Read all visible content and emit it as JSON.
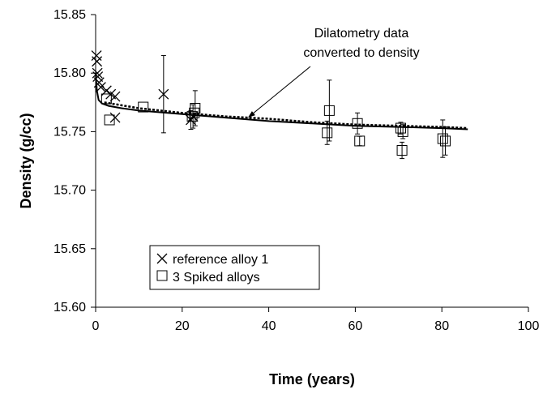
{
  "chart_data": {
    "type": "scatter",
    "title": "",
    "xlabel": "Time (years)",
    "ylabel": "Density (g/cc)",
    "xlim": [
      0,
      100
    ],
    "ylim": [
      15.6,
      15.85
    ],
    "x_ticks": [
      0,
      20,
      40,
      60,
      80,
      100
    ],
    "y_ticks": [
      15.6,
      15.65,
      15.7,
      15.75,
      15.8,
      15.85
    ],
    "x_tick_labels": [
      "0",
      "20",
      "40",
      "60",
      "80",
      "100"
    ],
    "y_tick_labels": [
      "15.60",
      "15.65",
      "15.70",
      "15.75",
      "15.80",
      "15.85"
    ],
    "grid": false,
    "legend_position": "bottom-left",
    "annotation": {
      "lines": [
        "Dilatometry data",
        "converted to density"
      ],
      "points_to": [
        35,
        15.762
      ]
    },
    "series": [
      {
        "name": "reference alloy 1",
        "marker": "x",
        "points": [
          {
            "x": 0.2,
            "y": 15.815
          },
          {
            "x": 0.3,
            "y": 15.81
          },
          {
            "x": 0.4,
            "y": 15.8
          },
          {
            "x": 0.5,
            "y": 15.797
          },
          {
            "x": 0.8,
            "y": 15.792
          },
          {
            "x": 1.2,
            "y": 15.788
          },
          {
            "x": 2.5,
            "y": 15.785
          },
          {
            "x": 3.5,
            "y": 15.782
          },
          {
            "x": 4.5,
            "y": 15.78
          },
          {
            "x": 4.5,
            "y": 15.762
          },
          {
            "x": 15.7,
            "y": 15.782,
            "err": 0.033
          },
          {
            "x": 22.0,
            "y": 15.76,
            "err": 0.008
          },
          {
            "x": 22.5,
            "y": 15.763,
            "err": 0.01
          }
        ]
      },
      {
        "name": "3 Spiked alloys",
        "marker": "square",
        "points": [
          {
            "x": 2.5,
            "y": 15.778
          },
          {
            "x": 3.2,
            "y": 15.76
          },
          {
            "x": 11.0,
            "y": 15.771
          },
          {
            "x": 22.3,
            "y": 15.763
          },
          {
            "x": 22.8,
            "y": 15.766
          },
          {
            "x": 23.0,
            "y": 15.77,
            "err": 0.015
          },
          {
            "x": 53.5,
            "y": 15.749,
            "err": 0.01
          },
          {
            "x": 54.0,
            "y": 15.768,
            "err": 0.026
          },
          {
            "x": 60.5,
            "y": 15.757,
            "err": 0.009
          },
          {
            "x": 61.0,
            "y": 15.742,
            "err": 0.004
          },
          {
            "x": 70.5,
            "y": 15.753,
            "err": 0.005
          },
          {
            "x": 71.0,
            "y": 15.75,
            "err": 0.006
          },
          {
            "x": 70.8,
            "y": 15.734,
            "err": 0.007
          },
          {
            "x": 80.2,
            "y": 15.744,
            "err": 0.016
          },
          {
            "x": 80.8,
            "y": 15.742,
            "err": 0.012
          }
        ]
      },
      {
        "name": "",
        "marker": "line-solid",
        "points": [
          {
            "x": 0,
            "y": 15.8
          },
          {
            "x": 0.3,
            "y": 15.785
          },
          {
            "x": 0.7,
            "y": 15.777
          },
          {
            "x": 1.5,
            "y": 15.774
          },
          {
            "x": 3,
            "y": 15.772
          },
          {
            "x": 6,
            "y": 15.77
          },
          {
            "x": 10,
            "y": 15.768
          },
          {
            "x": 20,
            "y": 15.765
          },
          {
            "x": 30,
            "y": 15.762
          },
          {
            "x": 40,
            "y": 15.759
          },
          {
            "x": 50,
            "y": 15.757
          },
          {
            "x": 60,
            "y": 15.755
          },
          {
            "x": 70,
            "y": 15.754
          },
          {
            "x": 80,
            "y": 15.753
          },
          {
            "x": 86,
            "y": 15.752
          }
        ]
      },
      {
        "name": "",
        "marker": "line-dotted",
        "points": [
          {
            "x": 2,
            "y": 15.775
          },
          {
            "x": 10,
            "y": 15.77
          },
          {
            "x": 20,
            "y": 15.766
          },
          {
            "x": 30,
            "y": 15.763
          },
          {
            "x": 40,
            "y": 15.761
          },
          {
            "x": 50,
            "y": 15.758
          },
          {
            "x": 60,
            "y": 15.756
          },
          {
            "x": 70,
            "y": 15.755
          },
          {
            "x": 80,
            "y": 15.754
          },
          {
            "x": 86,
            "y": 15.753
          }
        ]
      }
    ]
  }
}
